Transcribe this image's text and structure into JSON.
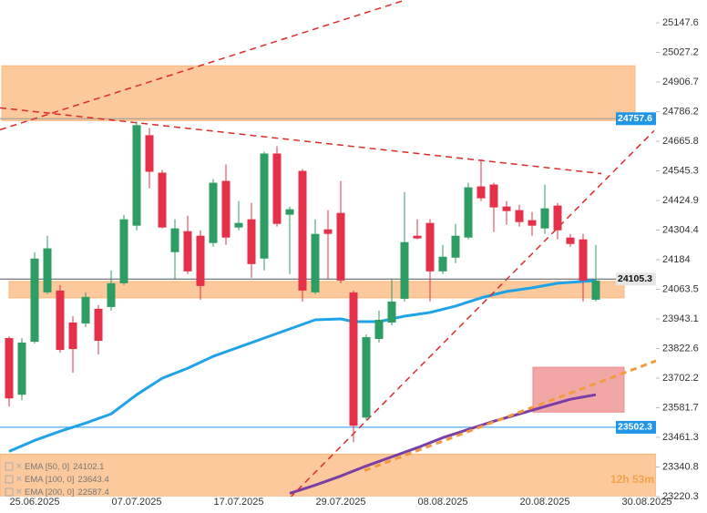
{
  "chart_data": {
    "type": "candlestick",
    "xlim": [
      -0.714,
      50.714
    ],
    "ylim": [
      23220.3,
      25240.5
    ],
    "yticks": [
      23220.3,
      23340.8,
      23461.3,
      23581.7,
      23702.2,
      23822.6,
      23943.1,
      24063.5,
      24184.0,
      24304.4,
      24424.9,
      24545.3,
      24665.8,
      24786.2,
      24906.7,
      25027.2,
      25147.6
    ],
    "xticks": [
      {
        "value": 2,
        "label": "25.06.2025"
      },
      {
        "value": 10,
        "label": "07.07.2025"
      },
      {
        "value": 18,
        "label": "17.07.2025"
      },
      {
        "value": 26,
        "label": "29.07.2025"
      },
      {
        "value": 34,
        "label": "08.08.2025"
      },
      {
        "value": 42,
        "label": "20.08.2025"
      },
      {
        "value": 50,
        "label": "30.08.2025"
      }
    ],
    "up_color": "#2e9d63",
    "down_color": "#e5304a",
    "x": [
      0,
      1,
      2,
      3,
      4,
      5,
      6,
      7,
      8,
      9,
      10,
      11,
      12,
      13,
      14,
      15,
      16,
      17,
      18,
      19,
      20,
      21,
      22,
      23,
      24,
      25,
      26,
      27,
      28,
      29,
      30,
      31,
      32,
      33,
      34,
      35,
      36,
      37,
      38,
      39,
      40,
      41,
      42,
      43,
      44,
      45,
      46
    ],
    "open": [
      23865.2,
      23634.8,
      23850.3,
      24051.1,
      24058.5,
      23928.4,
      23924.7,
      23984.2,
      23991.6,
      24088.2,
      24322.4,
      24690.4,
      24538.0,
      24214.6,
      24300.1,
      24281.5,
      24251.8,
      24504.6,
      24315.0,
      24348.4,
      24188.6,
      24616.0,
      24367.0,
      24545.4,
      24051.1,
      24307.5,
      24374.4,
      24051.1,
      23541.8,
      23861.5,
      23928.4,
      24025.0,
      24281.5,
      24333.5,
      24136.6,
      24192.3,
      24274.1,
      24482.2,
      24489.7,
      24400.4,
      24385.6,
      24344.7,
      24311.3,
      24404.2,
      24274.1,
      24266.6,
      24021.3
    ],
    "high": [
      23872.6,
      23865.2,
      24214.6,
      24281.5,
      24080.8,
      23954.4,
      24051.1,
      23999.0,
      24140.3,
      24367.0,
      24746.1,
      24720.1,
      24549.1,
      24348.4,
      24363.3,
      24303.8,
      24512.0,
      24571.4,
      24422.8,
      24415.3,
      24623.5,
      24645.8,
      24400.4,
      24552.9,
      24348.4,
      24385.6,
      24504.6,
      24058.5,
      23880.1,
      23976.7,
      24103.1,
      24459.9,
      24348.4,
      24348.4,
      24244.4,
      24329.8,
      24497.1,
      24593.7,
      24497.1,
      24422.8,
      24407.9,
      24378.2,
      24489.7,
      24415.3,
      24289.0,
      24289.0,
      24244.4
    ],
    "low": [
      23586.4,
      23612.4,
      23842.9,
      24043.6,
      23805.7,
      23724.0,
      23909.8,
      23798.3,
      23976.7,
      24080.8,
      24303.8,
      24474.8,
      24311.3,
      24103.1,
      24125.4,
      24021.3,
      24236.9,
      24244.4,
      24303.8,
      24110.5,
      24140.3,
      24318.7,
      24125.4,
      24013.9,
      24043.6,
      24106.8,
      24088.2,
      23441.5,
      23530.7,
      23846.6,
      23917.3,
      24013.9,
      24266.6,
      24013.9,
      24125.4,
      24170.0,
      24266.6,
      24422.8,
      24296.4,
      24326.1,
      24318.7,
      24281.5,
      24289.0,
      24266.6,
      24236.9,
      24013.9,
      24013.9
    ],
    "close": [
      23619.9,
      23846.6,
      24188.6,
      24230.1,
      23816.9,
      23820.6,
      24032.5,
      23854.1,
      24088.2,
      24348.4,
      24731.3,
      24541.7,
      24315.0,
      24311.3,
      24136.6,
      24077.1,
      24497.1,
      24274.1,
      24333.5,
      24166.3,
      24616.0,
      24329.8,
      24389.3,
      24058.5,
      24289.0,
      24289.0,
      24099.4,
      23508.4,
      23868.9,
      23939.5,
      24013.9,
      24255.5,
      24270.4,
      24136.6,
      24196.0,
      24281.5,
      24478.5,
      24433.9,
      24396.7,
      24381.9,
      24337.2,
      24322.4,
      24393.0,
      24303.8,
      24248.1,
      24099.4,
      24099.4
    ],
    "indicators": [
      {
        "name": "EMA [50, 0]",
        "last": 24102.1,
        "color": "#1ea3e8",
        "x": [
          0,
          2,
          4,
          6,
          8,
          10,
          12,
          14,
          16,
          18,
          20,
          22,
          24,
          26,
          27,
          29,
          31,
          33,
          35,
          37,
          39,
          41,
          43,
          45,
          46
        ],
        "values": [
          23404.3,
          23448.9,
          23486.1,
          23519.5,
          23556.7,
          23634.8,
          23701.6,
          23742.5,
          23790.9,
          23828.0,
          23865.2,
          23902.4,
          23939.5,
          23943.2,
          23932.1,
          23932.1,
          23954.4,
          23969.3,
          23995.3,
          24028.8,
          24054.8,
          24069.6,
          24088.2,
          24095.7,
          24099.4
        ]
      },
      {
        "name": "EMA [100, 0]",
        "last": 23643.4,
        "color": "#7a3ea6",
        "x": [
          22,
          24,
          26,
          28,
          30,
          32,
          34,
          36,
          38,
          40,
          42,
          44,
          46
        ],
        "values": [
          23233.4,
          23266.8,
          23304.0,
          23344.8,
          23382.0,
          23419.2,
          23460.0,
          23493.5,
          23527.0,
          23556.7,
          23586.4,
          23616.2,
          23634.8
        ]
      },
      {
        "name": "EMA [200, 0]",
        "last": 22587.4,
        "color": "#b0706e"
      }
    ],
    "zones": [
      {
        "x": [
          -0.57,
          49.07
        ],
        "y": [
          24749.9,
          24972.9
        ],
        "color": "#f9b77a"
      },
      {
        "x": [
          0,
          48.21
        ],
        "y": [
          24028.8,
          24095.7
        ],
        "color": "#f9b77a"
      },
      {
        "x": [
          -0.714,
          50.714
        ],
        "y": [
          23214.7,
          23393.1
        ],
        "color": "#f9b77a"
      },
      {
        "x": [
          41.07,
          48.21
        ],
        "y": [
          23564.1,
          23746.3
        ],
        "color": "#ee8a8a"
      }
    ],
    "trend_lines": [
      {
        "x": [
          -0.71,
          31.07
        ],
        "y": [
          24712.7,
          25240.5
        ],
        "color": "#dd2b2b",
        "width": 1.5
      },
      {
        "x": [
          -0.71,
          46.43
        ],
        "y": [
          24801.9,
          24534.3
        ],
        "color": "#dd2b2b",
        "width": 1.5
      },
      {
        "x": [
          22,
          50.57
        ],
        "y": [
          23214.7,
          24709.0
        ],
        "color": "#dd2b2b",
        "width": 1.5
      },
      {
        "x": [
          27.86,
          50.71
        ],
        "y": [
          23326.2,
          23772.3
        ],
        "color": "#f59a3c",
        "width": 3
      }
    ],
    "price_lines": [
      {
        "value": 24757.6,
        "line_color": "#9a9a9a",
        "tag_color": "#2196e8",
        "text_color": "#ffffff"
      },
      {
        "value": 24105.3,
        "line_color": "#555555",
        "tag_color": "#e6e6e6",
        "text_color": "#111111"
      },
      {
        "value": 23502.3,
        "line_color": "#2196e8",
        "tag_color": "#2196e8",
        "text_color": "#ffffff"
      }
    ],
    "countdown": "12h 53m"
  }
}
